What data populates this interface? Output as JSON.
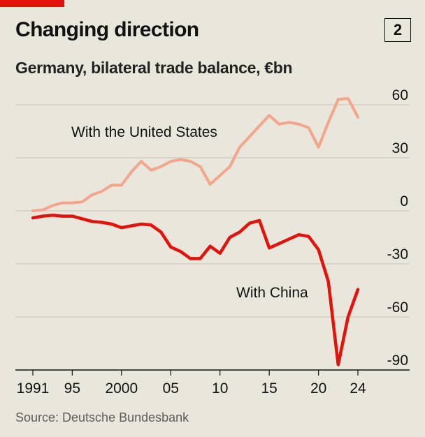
{
  "header": {
    "title": "Changing direction",
    "badge": "2",
    "subtitle": "Germany, bilateral trade balance, €bn"
  },
  "source": "Source: Deutsche Bundesbank",
  "colors": {
    "accent_bar": "#e3120b",
    "us_series": "#f4a58a",
    "china_series": "#e3120b",
    "grid": "#c6c3b8",
    "background": "#e9e6dc"
  },
  "chart_data": {
    "type": "line",
    "title": "Changing direction",
    "subtitle": "Germany, bilateral trade balance, €bn",
    "xlabel": "",
    "ylabel": "",
    "xlim": [
      1991,
      2024
    ],
    "ylim": [
      -90,
      60
    ],
    "y_ticks": [
      60,
      30,
      0,
      -30,
      -60,
      -90
    ],
    "y_tick_labels": [
      "60",
      "30",
      "0",
      "-30",
      "-60",
      "-90"
    ],
    "x_ticks": [
      1991,
      1995,
      2000,
      2005,
      2010,
      2015,
      2020,
      2024
    ],
    "x_tick_labels": [
      "1991",
      "95",
      "2000",
      "05",
      "10",
      "15",
      "20",
      "24"
    ],
    "grid": true,
    "series": [
      {
        "name": "With the United States",
        "color": "#f4a58a",
        "x": [
          1991,
          1992,
          1993,
          1994,
          1995,
          1996,
          1997,
          1998,
          1999,
          2000,
          2001,
          2002,
          2003,
          2004,
          2005,
          2006,
          2007,
          2008,
          2009,
          2010,
          2011,
          2012,
          2013,
          2014,
          2015,
          2016,
          2017,
          2018,
          2019,
          2020,
          2021,
          2022,
          2023,
          2024
        ],
        "y": [
          0,
          0.5,
          3,
          4.5,
          4.5,
          5,
          9,
          11,
          14.5,
          14.5,
          22,
          28,
          23,
          25,
          28,
          29,
          28,
          25,
          15,
          20,
          25,
          36,
          42,
          48,
          54,
          49,
          50,
          49,
          47,
          36,
          50,
          63,
          63.5,
          53
        ]
      },
      {
        "name": "With China",
        "color": "#e3120b",
        "x": [
          1991,
          1992,
          1993,
          1994,
          1995,
          1996,
          1997,
          1998,
          1999,
          2000,
          2001,
          2002,
          2003,
          2004,
          2005,
          2006,
          2007,
          2008,
          2009,
          2010,
          2011,
          2012,
          2013,
          2014,
          2015,
          2016,
          2017,
          2018,
          2019,
          2020,
          2021,
          2022,
          2023,
          2024
        ],
        "y": [
          -4,
          -3,
          -2.5,
          -3,
          -3,
          -4.5,
          -6,
          -6.5,
          -7.5,
          -9.5,
          -8.5,
          -7.5,
          -8,
          -12,
          -20.5,
          -23,
          -27,
          -27,
          -20,
          -24,
          -15,
          -12,
          -7,
          -5.5,
          -21,
          -18.5,
          -16,
          -13.5,
          -14.5,
          -22,
          -40,
          -87,
          -60,
          -44.5
        ]
      }
    ],
    "annotations": [
      {
        "text": "With the United States",
        "series": "With the United States"
      },
      {
        "text": "With China",
        "series": "With China"
      }
    ]
  }
}
